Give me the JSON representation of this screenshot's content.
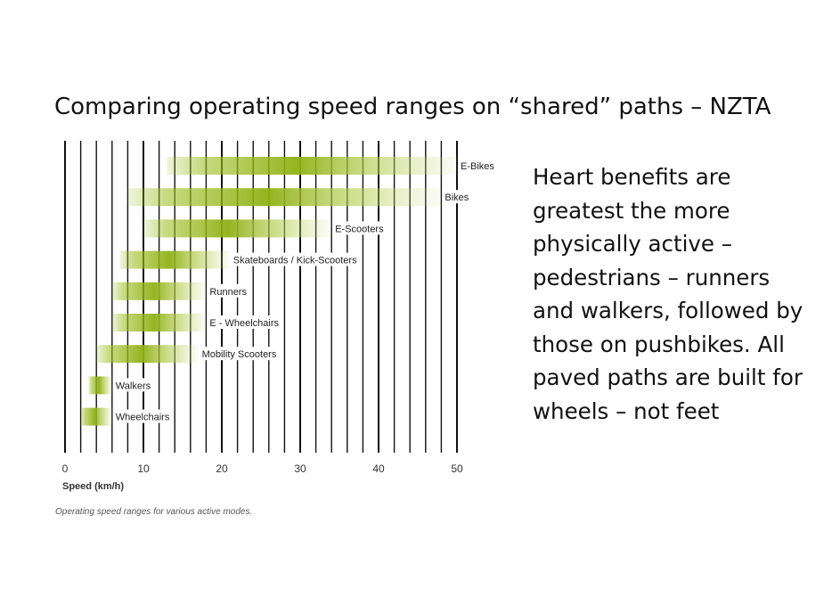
{
  "slide": {
    "title": "Comparing operating speed ranges on “shared” paths – NZTA",
    "body": "Heart benefits are greatest the more physically active – pedestrians – runners and walkers, followed by those on pushbikes. All paved paths are built for wheels – not feet"
  },
  "chart_data": {
    "type": "bar",
    "orientation": "horizontal-range",
    "xlabel": "Speed (km/h)",
    "xticks": [
      0,
      10,
      20,
      30,
      40,
      50
    ],
    "xlim": [
      0,
      50
    ],
    "grid": true,
    "caption": "Operating speed ranges for various active modes.",
    "bar_color": "#9cbb1a",
    "categories": [
      "E-Bikes",
      "Bikes",
      "E-Scooters",
      "Skateboards / Kick-Scooters",
      "Runners",
      "E - Wheelchairs",
      "Mobility Scooters",
      "Walkers",
      "Wheelchairs"
    ],
    "ranges": [
      {
        "min": 13,
        "max": 50
      },
      {
        "min": 8,
        "max": 48
      },
      {
        "min": 10,
        "max": 34
      },
      {
        "min": 7,
        "max": 21
      },
      {
        "min": 6,
        "max": 18
      },
      {
        "min": 6,
        "max": 18
      },
      {
        "min": 4,
        "max": 17
      },
      {
        "min": 3,
        "max": 6
      },
      {
        "min": 2,
        "max": 6
      }
    ]
  }
}
